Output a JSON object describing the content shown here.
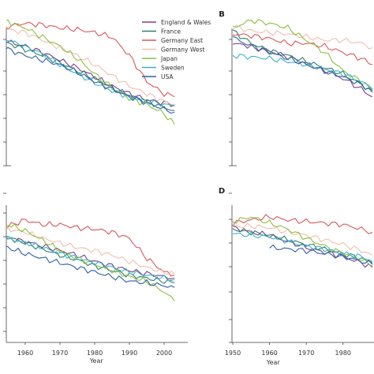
{
  "legend": {
    "entries": [
      {
        "name": "England & Wales",
        "color": "#7b3f8c"
      },
      {
        "name": "France",
        "color": "#2f7f6a"
      },
      {
        "name": "Germany East",
        "color": "#d9575b"
      },
      {
        "name": "Germany West",
        "color": "#f1bfae"
      },
      {
        "name": "Japan",
        "color": "#8cbf3f"
      },
      {
        "name": "Sweden",
        "color": "#3bb3c9"
      },
      {
        "name": "USA",
        "color": "#2c5ea8"
      }
    ]
  },
  "chart_data": [
    {
      "panel": "A",
      "letter": "",
      "type": "line",
      "xlabel": "",
      "ylabel": "",
      "xlim": [
        1950,
        2005
      ],
      "ylim": [
        0,
        1
      ],
      "x_ticks": [],
      "series": [
        {
          "name": "England & Wales",
          "x": [
            1950,
            1955,
            1960,
            1965,
            1970,
            1975,
            1980,
            1985,
            1990,
            1995,
            2000,
            2003
          ],
          "y": [
            0.83,
            0.81,
            0.78,
            0.74,
            0.69,
            0.64,
            0.58,
            0.52,
            0.47,
            0.43,
            0.41,
            0.4
          ]
        },
        {
          "name": "France",
          "x": [
            1950,
            1955,
            1960,
            1965,
            1970,
            1975,
            1980,
            1985,
            1990,
            1995,
            2000,
            2003
          ],
          "y": [
            0.82,
            0.8,
            0.76,
            0.72,
            0.67,
            0.62,
            0.57,
            0.51,
            0.46,
            0.42,
            0.38,
            0.36
          ]
        },
        {
          "name": "Germany East",
          "x": [
            1950,
            1955,
            1960,
            1965,
            1970,
            1975,
            1980,
            1985,
            1990,
            1995,
            2000,
            2003
          ],
          "y": [
            0.9,
            0.91,
            0.93,
            0.92,
            0.9,
            0.89,
            0.87,
            0.84,
            0.72,
            0.55,
            0.47,
            0.45
          ]
        },
        {
          "name": "Germany West",
          "x": [
            1950,
            1955,
            1960,
            1965,
            1970,
            1975,
            1980,
            1985,
            1990,
            1995,
            2000,
            2003
          ],
          "y": [
            0.88,
            0.89,
            0.87,
            0.82,
            0.77,
            0.72,
            0.66,
            0.59,
            0.52,
            0.47,
            0.42,
            0.4
          ]
        },
        {
          "name": "Japan",
          "x": [
            1950,
            1955,
            1960,
            1965,
            1970,
            1975,
            1980,
            1985,
            1990,
            1995,
            2000,
            2003
          ],
          "y": [
            0.92,
            0.94,
            0.9,
            0.84,
            0.78,
            0.7,
            0.6,
            0.51,
            0.44,
            0.4,
            0.34,
            0.27
          ]
        },
        {
          "name": "Sweden",
          "x": [
            1950,
            1955,
            1960,
            1965,
            1970,
            1975,
            1980,
            1985,
            1990,
            1995,
            2000,
            2003
          ],
          "y": [
            0.85,
            0.82,
            0.78,
            0.73,
            0.66,
            0.6,
            0.54,
            0.49,
            0.45,
            0.42,
            0.4,
            0.39
          ]
        },
        {
          "name": "USA",
          "x": [
            1950,
            1955,
            1960,
            1965,
            1970,
            1975,
            1980,
            1985,
            1990,
            1995,
            2000,
            2003
          ],
          "y": [
            0.8,
            0.76,
            0.72,
            0.69,
            0.66,
            0.61,
            0.55,
            0.5,
            0.45,
            0.41,
            0.37,
            0.35
          ]
        }
      ]
    },
    {
      "panel": "B",
      "letter": "B",
      "type": "line",
      "xlabel": "",
      "ylabel": "",
      "xlim": [
        1950,
        1988
      ],
      "ylim": [
        0,
        1
      ],
      "x_ticks": [],
      "series": [
        {
          "name": "England & Wales",
          "x": [
            1950,
            1955,
            1960,
            1965,
            1970,
            1975,
            1980,
            1985,
            1988
          ],
          "y": [
            0.8,
            0.78,
            0.75,
            0.71,
            0.67,
            0.62,
            0.57,
            0.5,
            0.45
          ]
        },
        {
          "name": "France",
          "x": [
            1950,
            1955,
            1960,
            1965,
            1970,
            1975,
            1980,
            1985,
            1988
          ],
          "y": [
            0.88,
            0.8,
            0.75,
            0.72,
            0.68,
            0.64,
            0.6,
            0.53,
            0.48
          ]
        },
        {
          "name": "Germany East",
          "x": [
            1950,
            1955,
            1960,
            1965,
            1970,
            1975,
            1980,
            1985,
            1988
          ],
          "y": [
            0.86,
            0.85,
            0.83,
            0.8,
            0.8,
            0.78,
            0.74,
            0.7,
            0.66
          ]
        },
        {
          "name": "Germany West",
          "x": [
            1950,
            1955,
            1960,
            1965,
            1970,
            1975,
            1980,
            1985,
            1988
          ],
          "y": [
            0.91,
            0.88,
            0.87,
            0.86,
            0.84,
            0.82,
            0.82,
            0.8,
            0.77
          ]
        },
        {
          "name": "Japan",
          "x": [
            1950,
            1955,
            1960,
            1965,
            1970,
            1975,
            1980,
            1985,
            1988
          ],
          "y": [
            0.9,
            0.95,
            0.93,
            0.9,
            0.82,
            0.74,
            0.62,
            0.55,
            0.5
          ]
        },
        {
          "name": "Sweden",
          "x": [
            1950,
            1955,
            1960,
            1965,
            1970,
            1975,
            1980,
            1985,
            1988
          ],
          "y": [
            0.72,
            0.71,
            0.7,
            0.68,
            0.66,
            0.63,
            0.6,
            0.55,
            0.5
          ]
        },
        {
          "name": "USA",
          "x": [
            1950,
            1955,
            1960,
            1965,
            1970,
            1975,
            1980,
            1985,
            1988
          ],
          "y": [
            0.84,
            0.78,
            0.74,
            0.7,
            0.66,
            0.62,
            0.58,
            0.53,
            0.49
          ]
        }
      ]
    },
    {
      "panel": "C",
      "letter": "",
      "type": "line",
      "xlabel": "Year",
      "ylabel": "",
      "xlim": [
        1950,
        2005
      ],
      "ylim": [
        0,
        1
      ],
      "x_ticks": [
        "1960",
        "1970",
        "1980",
        "1990",
        "2000"
      ],
      "series": [
        {
          "name": "England & Wales",
          "x": [
            1950,
            1955,
            1960,
            1965,
            1970,
            1975,
            1980,
            1985,
            1990,
            1995,
            2000,
            2003
          ],
          "y": [
            0.68,
            0.68,
            0.66,
            0.63,
            0.6,
            0.57,
            0.53,
            0.5,
            0.47,
            0.45,
            0.43,
            0.42
          ]
        },
        {
          "name": "France",
          "x": [
            1950,
            1955,
            1960,
            1965,
            1970,
            1975,
            1980,
            1985,
            1990,
            1995,
            2000,
            2003
          ],
          "y": [
            0.7,
            0.69,
            0.65,
            0.61,
            0.57,
            0.54,
            0.5,
            0.47,
            0.44,
            0.42,
            0.4,
            0.39
          ]
        },
        {
          "name": "Germany East",
          "x": [
            1950,
            1955,
            1960,
            1965,
            1970,
            1975,
            1980,
            1985,
            1990,
            1995,
            2000,
            2003
          ],
          "y": [
            0.74,
            0.76,
            0.8,
            0.77,
            0.77,
            0.75,
            0.74,
            0.72,
            0.68,
            0.55,
            0.46,
            0.44
          ]
        },
        {
          "name": "Germany West",
          "x": [
            1950,
            1955,
            1960,
            1965,
            1970,
            1975,
            1980,
            1985,
            1990,
            1995,
            2000,
            2003
          ],
          "y": [
            0.73,
            0.74,
            0.72,
            0.68,
            0.65,
            0.62,
            0.6,
            0.57,
            0.53,
            0.49,
            0.46,
            0.45
          ]
        },
        {
          "name": "Japan",
          "x": [
            1950,
            1955,
            1960,
            1965,
            1970,
            1975,
            1980,
            1985,
            1990,
            1995,
            2000,
            2003
          ],
          "y": [
            0.75,
            0.77,
            0.73,
            0.67,
            0.6,
            0.55,
            0.51,
            0.47,
            0.43,
            0.4,
            0.33,
            0.27
          ]
        },
        {
          "name": "Sweden",
          "x": [
            1950,
            1955,
            1960,
            1965,
            1970,
            1975,
            1980,
            1985,
            1990,
            1995,
            2000,
            2003
          ],
          "y": [
            0.69,
            0.68,
            0.65,
            0.62,
            0.58,
            0.55,
            0.52,
            0.49,
            0.46,
            0.44,
            0.42,
            0.41
          ]
        },
        {
          "name": "USA",
          "x": [
            1950,
            1955,
            1960,
            1965,
            1970,
            1975,
            1980,
            1985,
            1990,
            1995,
            2000,
            2003
          ],
          "y": [
            0.66,
            0.62,
            0.58,
            0.55,
            0.52,
            0.49,
            0.46,
            0.43,
            0.4,
            0.39,
            0.37,
            0.36
          ]
        }
      ]
    },
    {
      "panel": "D",
      "letter": "D",
      "type": "line",
      "xlabel": "Year",
      "ylabel": "",
      "xlim": [
        1950,
        1988
      ],
      "ylim": [
        0,
        1
      ],
      "x_ticks": [
        "1950",
        "1960",
        "1970",
        "1980"
      ],
      "series": [
        {
          "name": "England & Wales",
          "x": [
            1950,
            1955,
            1960,
            1965,
            1970,
            1975,
            1980,
            1985,
            1988
          ],
          "y": [
            0.75,
            0.72,
            0.7,
            0.66,
            0.62,
            0.59,
            0.56,
            0.52,
            0.49
          ]
        },
        {
          "name": "France",
          "x": [
            1950,
            1955,
            1960,
            1965,
            1970,
            1975,
            1980,
            1985,
            1988
          ],
          "y": [
            0.74,
            0.72,
            0.7,
            0.67,
            0.64,
            0.61,
            0.58,
            0.55,
            0.52
          ]
        },
        {
          "name": "Germany East",
          "x": [
            1950,
            1955,
            1960,
            1965,
            1970,
            1975,
            1980,
            1985,
            1988
          ],
          "y": [
            0.78,
            0.8,
            0.82,
            0.8,
            0.79,
            0.78,
            0.77,
            0.74,
            0.72
          ]
        },
        {
          "name": "Germany West",
          "x": [
            1950,
            1955,
            1960,
            1965,
            1970,
            1975,
            1980,
            1985,
            1988
          ],
          "y": [
            0.76,
            0.76,
            0.75,
            0.72,
            0.7,
            0.67,
            0.64,
            0.6,
            0.57
          ]
        },
        {
          "name": "Japan",
          "x": [
            1950,
            1955,
            1960,
            1965,
            1970,
            1975,
            1980,
            1985,
            1988
          ],
          "y": [
            0.79,
            0.82,
            0.78,
            0.74,
            0.68,
            0.63,
            0.58,
            0.54,
            0.5
          ]
        },
        {
          "name": "Sweden",
          "x": [
            1950,
            1955,
            1960,
            1965,
            1970,
            1975,
            1980,
            1985,
            1988
          ],
          "y": [
            0.71,
            0.7,
            0.69,
            0.66,
            0.63,
            0.61,
            0.58,
            0.56,
            0.53
          ]
        },
        {
          "name": "USA",
          "x": [
            1960,
            1965,
            1970,
            1975,
            1980,
            1985,
            1988
          ],
          "y": [
            0.62,
            0.61,
            0.6,
            0.58,
            0.56,
            0.53,
            0.51
          ]
        }
      ]
    }
  ]
}
